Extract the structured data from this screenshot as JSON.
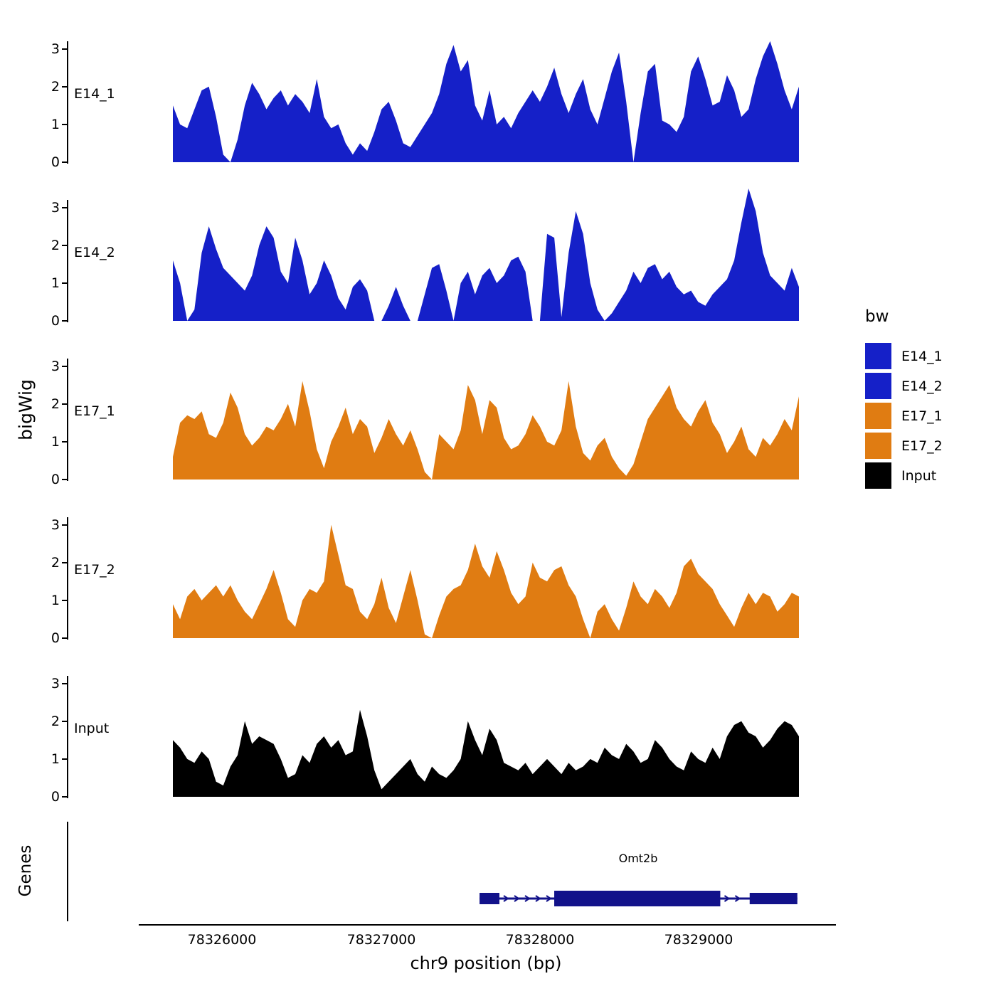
{
  "figure": {
    "genes_axis_label": "Genes"
  },
  "legend": {
    "title": "bw",
    "entries": [
      {
        "label": "E14_1",
        "color": "#1520C8"
      },
      {
        "label": "E14_2",
        "color": "#1520C8"
      },
      {
        "label": "E17_1",
        "color": "#E07C12"
      },
      {
        "label": "E17_2",
        "color": "#E07C12"
      },
      {
        "label": "Input",
        "color": "#000000"
      }
    ]
  },
  "chart_data": {
    "type": "area",
    "title": "",
    "xlabel": "chr9 position (bp)",
    "ylabel": "bigWig",
    "ylim": [
      0,
      3.5
    ],
    "y_ticks": [
      "3",
      "2",
      "1",
      "0"
    ],
    "x_range_bp": [
      78325690,
      78329630
    ],
    "x_ticks": [
      {
        "bp": 78326000,
        "label": "78326000"
      },
      {
        "bp": 78327000,
        "label": "78327000"
      },
      {
        "bp": 78328000,
        "label": "78328000"
      },
      {
        "bp": 78329000,
        "label": "78329000"
      }
    ],
    "tracks": [
      {
        "name": "E14_1",
        "color": "#1520C8",
        "values": [
          1.5,
          1.0,
          0.9,
          1.4,
          1.9,
          2.0,
          1.2,
          0.2,
          0.0,
          0.6,
          1.5,
          2.1,
          1.8,
          1.4,
          1.7,
          1.9,
          1.5,
          1.8,
          1.6,
          1.3,
          2.2,
          1.2,
          0.9,
          1.0,
          0.5,
          0.2,
          0.5,
          0.3,
          0.8,
          1.4,
          1.6,
          1.1,
          0.5,
          0.4,
          0.7,
          1.0,
          1.3,
          1.8,
          2.6,
          3.1,
          2.4,
          2.7,
          1.5,
          1.1,
          1.9,
          1.0,
          1.2,
          0.9,
          1.3,
          1.6,
          1.9,
          1.6,
          2.0,
          2.5,
          1.8,
          1.3,
          1.8,
          2.2,
          1.4,
          1.0,
          1.7,
          2.4,
          2.9,
          1.6,
          0.0,
          1.3,
          2.4,
          2.6,
          1.1,
          1.0,
          0.8,
          1.2,
          2.4,
          2.8,
          2.2,
          1.5,
          1.6,
          2.3,
          1.9,
          1.2,
          1.4,
          2.2,
          2.8,
          3.2,
          2.6,
          1.9,
          1.4,
          2.0
        ]
      },
      {
        "name": "E14_2",
        "color": "#1520C8",
        "values": [
          1.6,
          1.0,
          0.0,
          0.3,
          1.8,
          2.5,
          1.9,
          1.4,
          1.2,
          1.0,
          0.8,
          1.2,
          2.0,
          2.5,
          2.2,
          1.3,
          1.0,
          2.2,
          1.6,
          0.7,
          1.0,
          1.6,
          1.2,
          0.6,
          0.3,
          0.9,
          1.1,
          0.8,
          0.0,
          0.0,
          0.4,
          0.9,
          0.4,
          0.0,
          0.0,
          0.7,
          1.4,
          1.5,
          0.8,
          0.0,
          1.0,
          1.3,
          0.7,
          1.2,
          1.4,
          1.0,
          1.2,
          1.6,
          1.7,
          1.3,
          0.0,
          0.0,
          2.3,
          2.2,
          0.1,
          1.8,
          2.9,
          2.3,
          1.0,
          0.3,
          0.0,
          0.2,
          0.5,
          0.8,
          1.3,
          1.0,
          1.4,
          1.5,
          1.1,
          1.3,
          0.9,
          0.7,
          0.8,
          0.5,
          0.4,
          0.7,
          0.9,
          1.1,
          1.6,
          2.6,
          3.5,
          2.9,
          1.8,
          1.2,
          1.0,
          0.8,
          1.4,
          0.9
        ]
      },
      {
        "name": "E17_1",
        "color": "#E07C12",
        "values": [
          0.6,
          1.5,
          1.7,
          1.6,
          1.8,
          1.2,
          1.1,
          1.5,
          2.3,
          1.9,
          1.2,
          0.9,
          1.1,
          1.4,
          1.3,
          1.6,
          2.0,
          1.4,
          2.6,
          1.8,
          0.8,
          0.3,
          1.0,
          1.4,
          1.9,
          1.2,
          1.6,
          1.4,
          0.7,
          1.1,
          1.6,
          1.2,
          0.9,
          1.3,
          0.8,
          0.2,
          0.0,
          1.2,
          1.0,
          0.8,
          1.3,
          2.5,
          2.1,
          1.2,
          2.1,
          1.9,
          1.1,
          0.8,
          0.9,
          1.2,
          1.7,
          1.4,
          1.0,
          0.9,
          1.3,
          2.6,
          1.4,
          0.7,
          0.5,
          0.9,
          1.1,
          0.6,
          0.3,
          0.1,
          0.4,
          1.0,
          1.6,
          1.9,
          2.2,
          2.5,
          1.9,
          1.6,
          1.4,
          1.8,
          2.1,
          1.5,
          1.2,
          0.7,
          1.0,
          1.4,
          0.8,
          0.6,
          1.1,
          0.9,
          1.2,
          1.6,
          1.3,
          2.2
        ]
      },
      {
        "name": "E17_2",
        "color": "#E07C12",
        "values": [
          0.9,
          0.5,
          1.1,
          1.3,
          1.0,
          1.2,
          1.4,
          1.1,
          1.4,
          1.0,
          0.7,
          0.5,
          0.9,
          1.3,
          1.8,
          1.2,
          0.5,
          0.3,
          1.0,
          1.3,
          1.2,
          1.5,
          3.0,
          2.2,
          1.4,
          1.3,
          0.7,
          0.5,
          0.9,
          1.6,
          0.8,
          0.4,
          1.1,
          1.8,
          1.0,
          0.1,
          0.0,
          0.6,
          1.1,
          1.3,
          1.4,
          1.8,
          2.5,
          1.9,
          1.6,
          2.3,
          1.8,
          1.2,
          0.9,
          1.1,
          2.0,
          1.6,
          1.5,
          1.8,
          1.9,
          1.4,
          1.1,
          0.5,
          0.0,
          0.7,
          0.9,
          0.5,
          0.2,
          0.8,
          1.5,
          1.1,
          0.9,
          1.3,
          1.1,
          0.8,
          1.2,
          1.9,
          2.1,
          1.7,
          1.5,
          1.3,
          0.9,
          0.6,
          0.3,
          0.8,
          1.2,
          0.9,
          1.2,
          1.1,
          0.7,
          0.9,
          1.2,
          1.1
        ]
      },
      {
        "name": "Input",
        "color": "#000000",
        "values": [
          1.5,
          1.3,
          1.0,
          0.9,
          1.2,
          1.0,
          0.4,
          0.3,
          0.8,
          1.1,
          2.0,
          1.4,
          1.6,
          1.5,
          1.4,
          1.0,
          0.5,
          0.6,
          1.1,
          0.9,
          1.4,
          1.6,
          1.3,
          1.5,
          1.1,
          1.2,
          2.3,
          1.6,
          0.7,
          0.2,
          0.4,
          0.6,
          0.8,
          1.0,
          0.6,
          0.4,
          0.8,
          0.6,
          0.5,
          0.7,
          1.0,
          2.0,
          1.5,
          1.1,
          1.8,
          1.5,
          0.9,
          0.8,
          0.7,
          0.9,
          0.6,
          0.8,
          1.0,
          0.8,
          0.6,
          0.9,
          0.7,
          0.8,
          1.0,
          0.9,
          1.3,
          1.1,
          1.0,
          1.4,
          1.2,
          0.9,
          1.0,
          1.5,
          1.3,
          1.0,
          0.8,
          0.7,
          1.2,
          1.0,
          0.9,
          1.3,
          1.0,
          1.6,
          1.9,
          2.0,
          1.7,
          1.6,
          1.3,
          1.5,
          1.8,
          2.0,
          1.9,
          1.6
        ]
      }
    ],
    "gene": {
      "name": "Omt2b",
      "start": 78327620,
      "end": 78329620,
      "strand": "+",
      "exons": [
        [
          78327620,
          78327745
        ],
        [
          78328090,
          78329135
        ],
        [
          78329320,
          78329620
        ]
      ],
      "exon_heights": [
        16,
        22,
        16
      ],
      "color": "#12128A"
    }
  }
}
